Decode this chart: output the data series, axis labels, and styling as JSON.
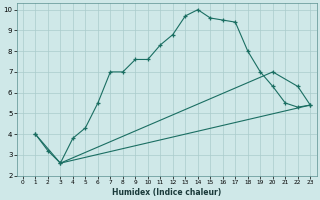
{
  "xlabel": "Humidex (Indice chaleur)",
  "bg_color": "#cfe8e8",
  "line_color": "#1a6e62",
  "grid_color": "#aacccc",
  "xlim": [
    -0.5,
    23.5
  ],
  "ylim": [
    2,
    10.3
  ],
  "xticks": [
    0,
    1,
    2,
    3,
    4,
    5,
    6,
    7,
    8,
    9,
    10,
    11,
    12,
    13,
    14,
    15,
    16,
    17,
    18,
    19,
    20,
    21,
    22,
    23
  ],
  "yticks": [
    2,
    3,
    4,
    5,
    6,
    7,
    8,
    9,
    10
  ],
  "line1_x": [
    1,
    2,
    3,
    4,
    5,
    6,
    7,
    8,
    9,
    10,
    11,
    12,
    13,
    14,
    15,
    16,
    17,
    18,
    19,
    20,
    21,
    22,
    23
  ],
  "line1_y": [
    4.0,
    3.2,
    2.6,
    3.8,
    4.3,
    5.5,
    7.0,
    7.0,
    7.6,
    7.6,
    8.3,
    8.8,
    9.7,
    10.0,
    9.6,
    9.5,
    9.4,
    8.0,
    7.0,
    6.3,
    5.5,
    5.3,
    5.4
  ],
  "line2_x": [
    1,
    3,
    20,
    22,
    23
  ],
  "line2_y": [
    4.0,
    2.6,
    7.0,
    6.3,
    5.4
  ],
  "line3_x": [
    3,
    23
  ],
  "line3_y": [
    2.6,
    5.4
  ]
}
